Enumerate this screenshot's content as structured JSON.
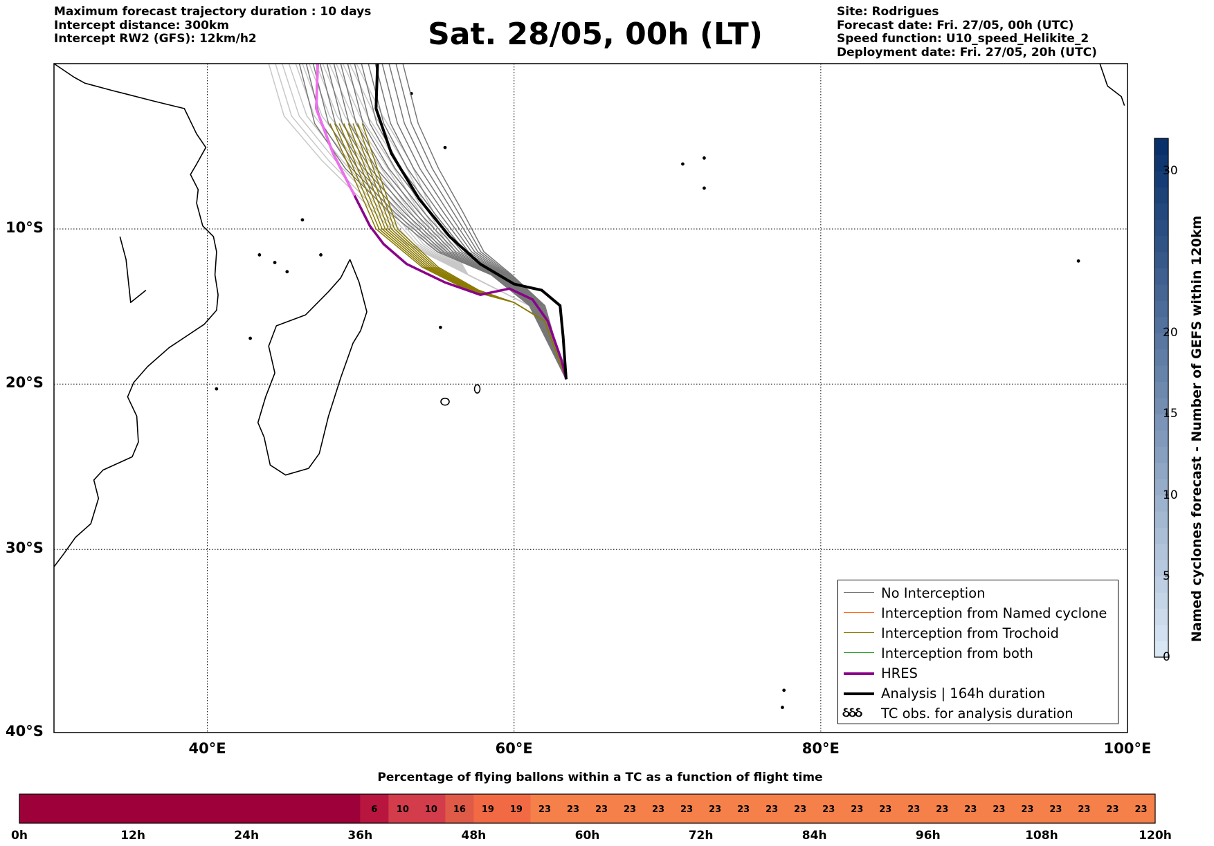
{
  "header": {
    "left_lines": [
      "Maximum forecast trajectory duration : 10 days",
      "Intercept distance: 300km",
      "Intercept RW2 (GFS):  12km/h2"
    ],
    "title": "Sat. 28/05, 00h (LT)",
    "right_lines": [
      "Site: Rodrigues",
      "Forecast date: Fri. 27/05, 00h (UTC)",
      "Speed function: U10_speed_Helikite_2",
      "Deployment date: Fri. 27/05, 20h (UTC)"
    ]
  },
  "map": {
    "lon_range": [
      30,
      100
    ],
    "lat_range": [
      -40,
      1
    ],
    "lat_labels": [
      "10°S",
      "20°S",
      "30°S",
      "40°S"
    ],
    "lon_labels": [
      "40°E",
      "60°E",
      "80°E",
      "100°E"
    ],
    "gridlines": true,
    "deployment_site": "Rodrigues",
    "colors": {
      "no_interception": "#777777",
      "ensemble_light": "#c8c8c8",
      "named_cyclone": "#ff6a1a",
      "trochoid": "#8a7a00",
      "both": "#1a9a1a",
      "hres": "#8b008b",
      "hres_early": "#f06ef0",
      "analysis": "#000000"
    }
  },
  "legend": {
    "items": [
      {
        "label": "No Interception",
        "color": "#777777",
        "style": "thin"
      },
      {
        "label": "Interception from Named cyclone",
        "color": "#ff6a1a",
        "style": "thin"
      },
      {
        "label": "Interception from Trochoid",
        "color": "#8a7a00",
        "style": "thin"
      },
      {
        "label": "Interception from both",
        "color": "#1a9a1a",
        "style": "thin"
      },
      {
        "label": "HRES",
        "color": "#8b008b",
        "style": "thick"
      },
      {
        "label": "Analysis | 164h duration",
        "color": "#000000",
        "style": "thick"
      },
      {
        "label": "TC obs. for analysis duration",
        "color": "#000000",
        "style": "glyph",
        "glyph": "ઠઠઠ"
      }
    ]
  },
  "colorbar": {
    "label": "Named cyclones forecast - Number of GEFS within 120km",
    "min": 0,
    "max": 32,
    "ticks": [
      "0",
      "5",
      "10",
      "15",
      "20",
      "30"
    ],
    "tick_values": [
      0,
      5,
      10,
      15,
      20,
      30
    ],
    "color_low": "#d9e7f5",
    "color_high": "#08306b"
  },
  "timeline": {
    "title": "Percentage of flying ballons within a TC as a function of flight time",
    "tick_labels": [
      "0h",
      "12h",
      "24h",
      "36h",
      "48h",
      "60h",
      "72h",
      "84h",
      "96h",
      "108h",
      "120h"
    ],
    "total_hours": 120,
    "step_hours": 3,
    "values": [
      0,
      0,
      0,
      0,
      0,
      0,
      0,
      0,
      0,
      0,
      0,
      0,
      6,
      10,
      10,
      16,
      19,
      19,
      23,
      23,
      23,
      23,
      23,
      23,
      23,
      23,
      23,
      23,
      23,
      23,
      23,
      23,
      23,
      23,
      23,
      23,
      23,
      23,
      23,
      23
    ],
    "colors": {
      "0": "#9e003a",
      "6": "#b8163f",
      "10": "#d23c4b",
      "16": "#e05a48",
      "19": "#f26a44",
      "23": "#f5804a"
    }
  }
}
